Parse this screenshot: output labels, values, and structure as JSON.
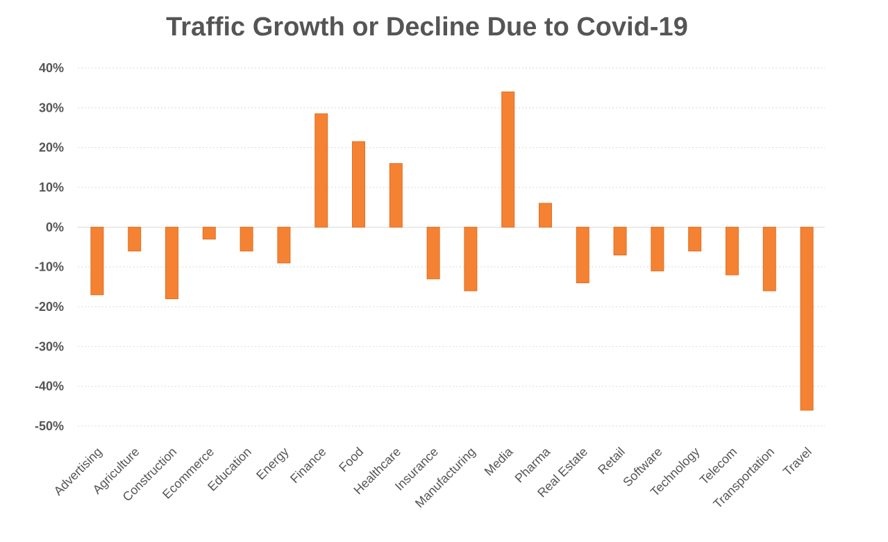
{
  "chart_data": {
    "type": "bar",
    "title": "Traffic Growth or Decline Due to Covid-19",
    "xlabel": "",
    "ylabel": "",
    "ylim": [
      -50,
      40
    ],
    "yticks": [
      40,
      30,
      20,
      10,
      0,
      -10,
      -20,
      -30,
      -40,
      -50
    ],
    "ytick_labels": [
      "40%",
      "30%",
      "20%",
      "10%",
      "0%",
      "-10%",
      "-20%",
      "-30%",
      "-40%",
      "-50%"
    ],
    "grid": true,
    "legend": "none",
    "bar_color": "#f58233",
    "categories": [
      "Advertising",
      "Agriculture",
      "Construction",
      "Ecommerce",
      "Education",
      "Energy",
      "Finance",
      "Food",
      "Healthcare",
      "Insurance",
      "Manufacturing",
      "Media",
      "Pharma",
      "Real Estate",
      "Retail",
      "Software",
      "Technology",
      "Telecom",
      "Transportation",
      "Travel"
    ],
    "values": [
      -17,
      -6,
      -18,
      -3,
      -6,
      -9,
      28.5,
      21.5,
      16,
      -13,
      -16,
      34,
      6,
      -14,
      -7,
      -11,
      -6,
      -12,
      -16,
      -46
    ]
  }
}
